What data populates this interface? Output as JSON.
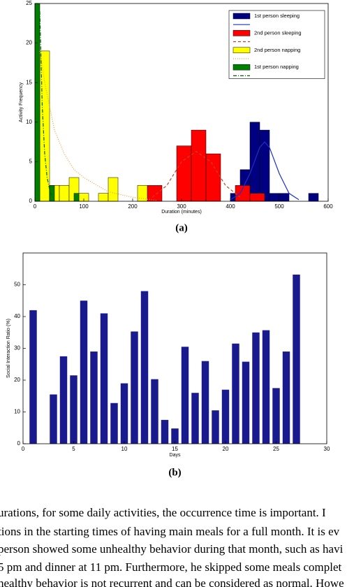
{
  "chart_data": [
    {
      "type": "histogram",
      "caption": "(a)",
      "x_label": "Duration (minutes)",
      "y_label": "Activity Frequency",
      "xlim": [
        0,
        600
      ],
      "xticks": [
        0,
        100,
        200,
        300,
        400,
        500,
        600
      ],
      "ylim": [
        0,
        25
      ],
      "yticks": [
        0,
        5,
        10,
        15,
        20,
        25
      ],
      "legend": "upper right",
      "series": [
        {
          "name": "1st person sleeping",
          "color": "#000080",
          "bins": [
            400,
            420,
            440,
            460,
            480,
            500,
            520,
            540,
            560,
            580,
            600
          ],
          "values": [
            1,
            4,
            10,
            9,
            1,
            1,
            0,
            0,
            1,
            0
          ]
        },
        {
          "name": "2nd person sleeping",
          "color": "#ff0000",
          "bins": [
            230,
            260,
            290,
            320,
            350,
            380,
            410,
            440,
            470
          ],
          "values": [
            2,
            0,
            7,
            9,
            6,
            0,
            2,
            1
          ]
        },
        {
          "name": "2nd person napping",
          "color": "#ffff00",
          "bins": [
            10,
            30,
            50,
            70,
            90,
            110,
            130,
            150,
            170,
            190,
            210,
            230,
            250
          ],
          "values": [
            19,
            2,
            2,
            3,
            1,
            0,
            1,
            3,
            0,
            0,
            2,
            0
          ]
        },
        {
          "name": "1st person napping",
          "color": "#007f00",
          "bins": [
            0,
            10,
            20,
            30,
            40,
            50,
            60,
            70,
            80,
            90,
            100
          ],
          "values": [
            25,
            0,
            0,
            2,
            0,
            0,
            0,
            0,
            1,
            0
          ]
        }
      ],
      "fits": [
        {
          "color": "#1f30c8",
          "dash": "solid",
          "x": [
            400,
            420,
            440,
            460,
            470,
            480,
            500,
            520,
            540
          ],
          "values": [
            0.2,
            1,
            3.5,
            6.8,
            7.5,
            6.8,
            3.5,
            1,
            0.2
          ]
        },
        {
          "color": "#c0442c",
          "dash": "dashed",
          "x": [
            240,
            270,
            300,
            330,
            360,
            390,
            420
          ],
          "values": [
            0.5,
            2,
            5,
            6.3,
            5,
            2,
            0.5
          ]
        },
        {
          "color": "#f0a030",
          "dash": "dotted",
          "x": [
            10,
            20,
            40,
            60,
            80,
            100,
            150,
            200,
            250
          ],
          "values": [
            19,
            15,
            9,
            6,
            4,
            3,
            1.2,
            0.5,
            0.1
          ]
        },
        {
          "color": "#006400",
          "dash": "dashdot",
          "x": [
            10,
            15,
            20,
            25,
            30,
            35,
            40
          ],
          "values": [
            24,
            12,
            6,
            3,
            1.5,
            0.6,
            0.2
          ]
        }
      ]
    },
    {
      "type": "bar",
      "caption": "(b)",
      "x_label": "Days",
      "y_label": "Social Interaction Ratio (%)",
      "xlim": [
        0,
        30
      ],
      "xticks": [
        0,
        5,
        10,
        15,
        20,
        25,
        30
      ],
      "ylim": [
        0,
        60
      ],
      "yticks": [
        0,
        10,
        20,
        30,
        40,
        50
      ],
      "color": "#1a1a8f",
      "x": [
        1,
        3,
        4,
        5,
        6,
        7,
        8,
        9,
        10,
        11,
        12,
        13,
        14,
        15,
        16,
        17,
        18,
        19,
        20,
        21,
        22,
        23,
        24,
        25,
        26,
        27
      ],
      "values": [
        42,
        15.5,
        27.5,
        21.5,
        45,
        29,
        41,
        12.8,
        19,
        35.3,
        48,
        20.3,
        7.5,
        4.8,
        30.5,
        16,
        26,
        10.5,
        17,
        31.5,
        25.8,
        35,
        35.7,
        17.5,
        29,
        53.2
      ]
    }
  ],
  "body_text": [
    "urations, for some daily activities, the occurrence time is important.  I",
    "tions in the starting times of having main meals for a full month. It is ev",
    "person showed some unhealthy behavior during that month, such as havi",
    "5 pm and dinner at 11 pm. Furthermore, he skipped some meals complet",
    "healthy behavior is not recurrent and can be considered as normal. Howe"
  ]
}
